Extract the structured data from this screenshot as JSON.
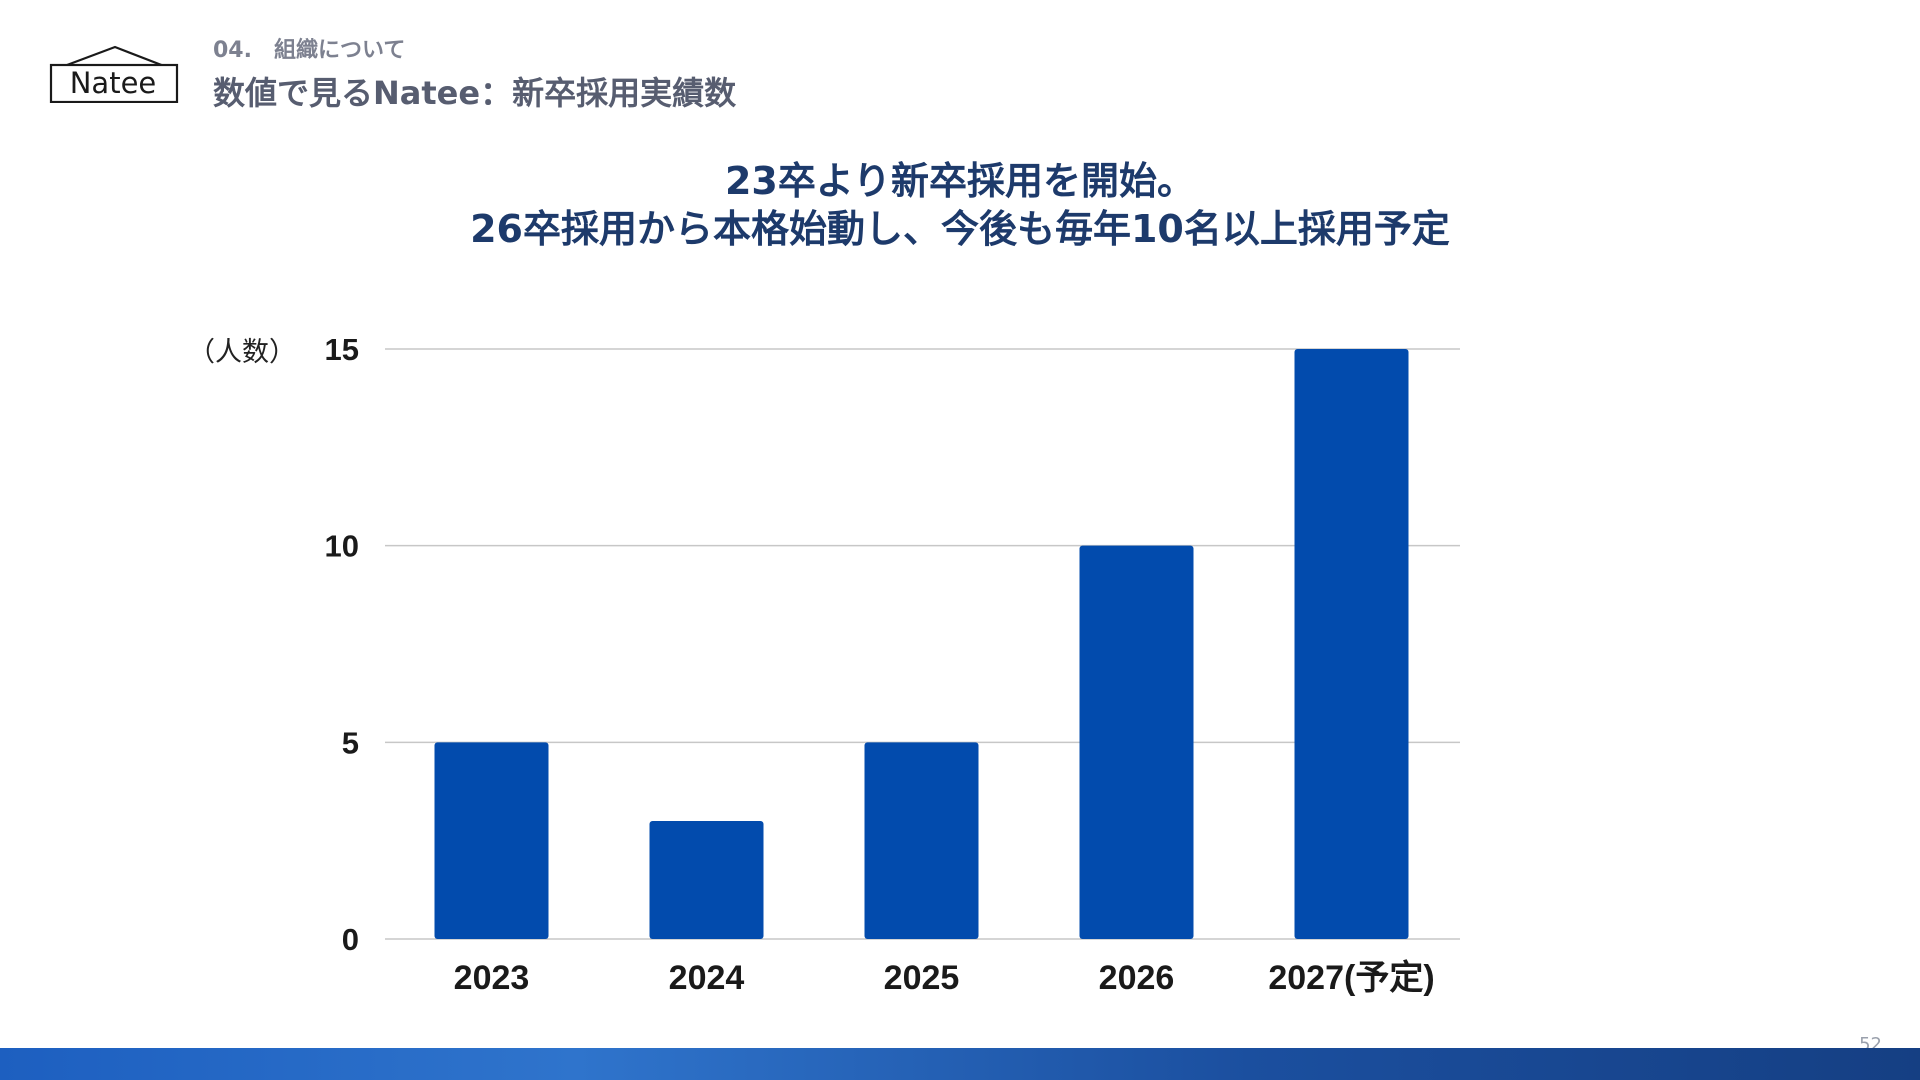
{
  "header": {
    "section_number": "04.",
    "section_name": "組織について",
    "title": "数値で見るNatee：新卒採用実績数",
    "logo_text": "Natee"
  },
  "headline": {
    "line1": "23卒より新卒採用を開始。",
    "line2": "26卒採用から本格始動し、今後も毎年10名以上採用予定"
  },
  "chart_data": {
    "type": "bar",
    "categories": [
      "2023",
      "2024",
      "2025",
      "2026",
      "2027(予定)"
    ],
    "values": [
      5,
      3,
      5,
      10,
      15
    ],
    "unit_label": "（人数）",
    "ylim": [
      0,
      15
    ],
    "yticks": [
      0,
      5,
      10,
      15
    ],
    "grid": true,
    "bar_color": "#024bad",
    "grid_color": "#c7c7c7"
  },
  "footer": {
    "page_number": "52"
  }
}
